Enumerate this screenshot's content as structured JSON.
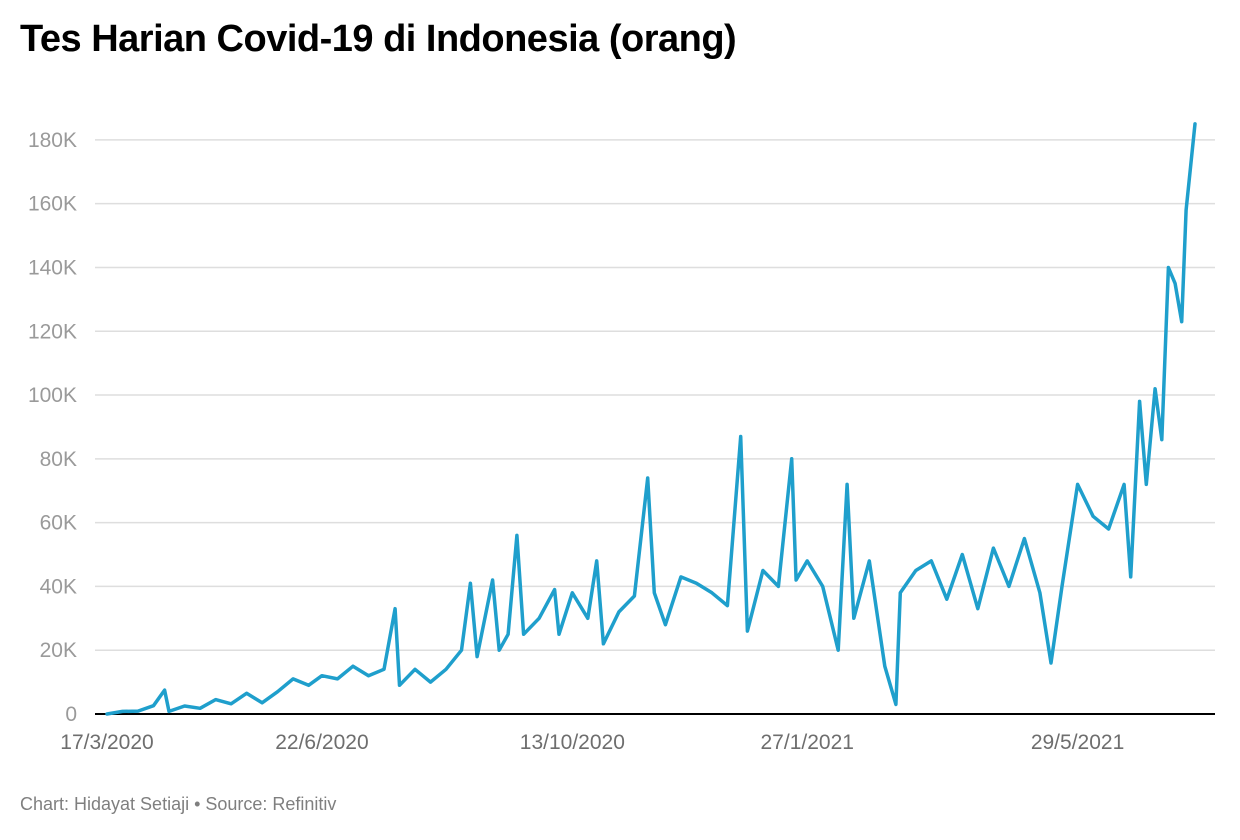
{
  "header": {
    "title": "Tes Harian Covid-19 di Indonesia (orang)"
  },
  "footer": {
    "credit": "Chart: Hidayat Setiaji • Source: Refinitiv"
  },
  "colors": {
    "line": "#1f9fcc",
    "grid": "#dedede",
    "axis": "#000000",
    "tick_text": "#9a9a9a"
  },
  "chart_data": {
    "type": "line",
    "title": "Tes Harian Covid-19 di Indonesia (orang)",
    "xlabel": "",
    "ylabel": "",
    "x_start": "17/3/2020",
    "x_end": "21/7/2021",
    "ylim": [
      0,
      190000
    ],
    "grid": true,
    "legend": "none",
    "y_ticks": [
      {
        "value": 0,
        "label": "0"
      },
      {
        "value": 20000,
        "label": "20K"
      },
      {
        "value": 40000,
        "label": "40K"
      },
      {
        "value": 60000,
        "label": "60K"
      },
      {
        "value": 80000,
        "label": "80K"
      },
      {
        "value": 100000,
        "label": "100K"
      },
      {
        "value": 120000,
        "label": "120K"
      },
      {
        "value": 140000,
        "label": "140K"
      },
      {
        "value": 160000,
        "label": "160K"
      },
      {
        "value": 180000,
        "label": "180K"
      }
    ],
    "x_ticks": [
      {
        "date": "17/3/2020",
        "label": "17/3/2020"
      },
      {
        "date": "22/6/2020",
        "label": "22/6/2020"
      },
      {
        "date": "13/10/2020",
        "label": "13/10/2020"
      },
      {
        "date": "27/1/2021",
        "label": "27/1/2021"
      },
      {
        "date": "29/5/2021",
        "label": "29/5/2021"
      }
    ],
    "series": [
      {
        "points": [
          [
            "17/3/2020",
            0
          ],
          [
            "24/3/2020",
            800
          ],
          [
            "31/3/2020",
            900
          ],
          [
            "7/4/2020",
            2600
          ],
          [
            "12/4/2020",
            7500
          ],
          [
            "14/4/2020",
            800
          ],
          [
            "21/4/2020",
            2500
          ],
          [
            "28/4/2020",
            1800
          ],
          [
            "5/5/2020",
            4500
          ],
          [
            "12/5/2020",
            3200
          ],
          [
            "19/5/2020",
            6500
          ],
          [
            "26/5/2020",
            3500
          ],
          [
            "2/6/2020",
            7000
          ],
          [
            "9/6/2020",
            11000
          ],
          [
            "16/6/2020",
            9000
          ],
          [
            "22/6/2020",
            12000
          ],
          [
            "29/6/2020",
            11000
          ],
          [
            "6/7/2020",
            15000
          ],
          [
            "13/7/2020",
            12000
          ],
          [
            "20/7/2020",
            14000
          ],
          [
            "25/7/2020",
            33000
          ],
          [
            "27/7/2020",
            9000
          ],
          [
            "3/8/2020",
            14000
          ],
          [
            "10/8/2020",
            10000
          ],
          [
            "17/8/2020",
            14000
          ],
          [
            "24/8/2020",
            20000
          ],
          [
            "28/8/2020",
            41000
          ],
          [
            "31/8/2020",
            18000
          ],
          [
            "7/9/2020",
            42000
          ],
          [
            "10/9/2020",
            20000
          ],
          [
            "14/9/2020",
            25000
          ],
          [
            "18/9/2020",
            56000
          ],
          [
            "21/9/2020",
            25000
          ],
          [
            "28/9/2020",
            30000
          ],
          [
            "5/10/2020",
            39000
          ],
          [
            "7/10/2020",
            25000
          ],
          [
            "13/10/2020",
            38000
          ],
          [
            "20/10/2020",
            30000
          ],
          [
            "24/10/2020",
            48000
          ],
          [
            "27/10/2020",
            22000
          ],
          [
            "3/11/2020",
            32000
          ],
          [
            "10/11/2020",
            37000
          ],
          [
            "16/11/2020",
            74000
          ],
          [
            "19/11/2020",
            38000
          ],
          [
            "24/11/2020",
            28000
          ],
          [
            "1/12/2020",
            43000
          ],
          [
            "8/12/2020",
            41000
          ],
          [
            "15/12/2020",
            38000
          ],
          [
            "22/12/2020",
            34000
          ],
          [
            "28/12/2020",
            87000
          ],
          [
            "31/12/2020",
            26000
          ],
          [
            "7/1/2021",
            45000
          ],
          [
            "14/1/2021",
            40000
          ],
          [
            "20/1/2021",
            80000
          ],
          [
            "22/1/2021",
            42000
          ],
          [
            "27/1/2021",
            48000
          ],
          [
            "3/2/2021",
            40000
          ],
          [
            "10/2/2021",
            20000
          ],
          [
            "14/2/2021",
            72000
          ],
          [
            "17/2/2021",
            30000
          ],
          [
            "24/2/2021",
            48000
          ],
          [
            "3/3/2021",
            15000
          ],
          [
            "8/3/2021",
            3000
          ],
          [
            "10/3/2021",
            38000
          ],
          [
            "17/3/2021",
            45000
          ],
          [
            "24/3/2021",
            48000
          ],
          [
            "31/3/2021",
            36000
          ],
          [
            "7/4/2021",
            50000
          ],
          [
            "14/4/2021",
            33000
          ],
          [
            "21/4/2021",
            52000
          ],
          [
            "28/4/2021",
            40000
          ],
          [
            "5/5/2021",
            55000
          ],
          [
            "12/5/2021",
            38000
          ],
          [
            "17/5/2021",
            16000
          ],
          [
            "22/5/2021",
            40000
          ],
          [
            "29/5/2021",
            72000
          ],
          [
            "5/6/2021",
            62000
          ],
          [
            "12/6/2021",
            58000
          ],
          [
            "19/6/2021",
            72000
          ],
          [
            "22/6/2021",
            43000
          ],
          [
            "26/6/2021",
            98000
          ],
          [
            "29/6/2021",
            72000
          ],
          [
            "3/7/2021",
            102000
          ],
          [
            "6/7/2021",
            86000
          ],
          [
            "9/7/2021",
            140000
          ],
          [
            "12/7/2021",
            135000
          ],
          [
            "15/7/2021",
            123000
          ],
          [
            "17/7/2021",
            158000
          ],
          [
            "21/7/2021",
            185000
          ]
        ]
      }
    ]
  }
}
